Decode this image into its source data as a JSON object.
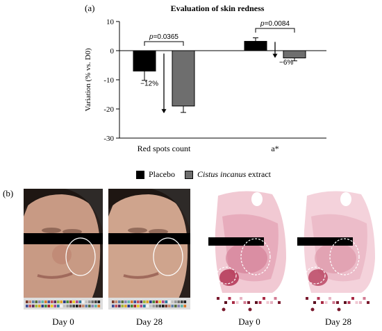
{
  "panel_a_label": "(a)",
  "panel_b_label": "(b)",
  "chart_data": {
    "type": "bar",
    "title": "Evaluation of skin redness",
    "ylabel": "Variation (% vs. D0)",
    "xlabel": "",
    "ylim": [
      -30,
      10
    ],
    "yticks": [
      10,
      0,
      -10,
      -20,
      -30
    ],
    "categories": [
      "Red spots count",
      "a*"
    ],
    "series": [
      {
        "name": "Placebo",
        "color": "#000000",
        "values": [
          -7,
          3.2
        ],
        "errors": [
          3.2,
          1.2
        ]
      },
      {
        "name": "Cistus incanus extract",
        "color": "#6e6e6e",
        "values": [
          -19,
          -2.5
        ],
        "errors": [
          2.2,
          1.0
        ]
      }
    ],
    "annotations": [
      {
        "category": "Red spots count",
        "p_prefix": "p",
        "p_value": "=0.0365",
        "change": "−12%"
      },
      {
        "category": "a*",
        "p_prefix": "p",
        "p_value": "=0.0084",
        "change": "−6%"
      }
    ],
    "grid": false,
    "legend_placement": "bottom"
  },
  "legend": {
    "placebo": "Placebo",
    "extract_italic": "Cistus incanus",
    "extract_rest": " extract"
  },
  "images": [
    {
      "caption": "Day 0",
      "kind": "photo"
    },
    {
      "caption": "Day 28",
      "kind": "photo"
    },
    {
      "caption": "Day 0",
      "kind": "redness-map"
    },
    {
      "caption": "Day 28",
      "kind": "redness-map"
    }
  ]
}
